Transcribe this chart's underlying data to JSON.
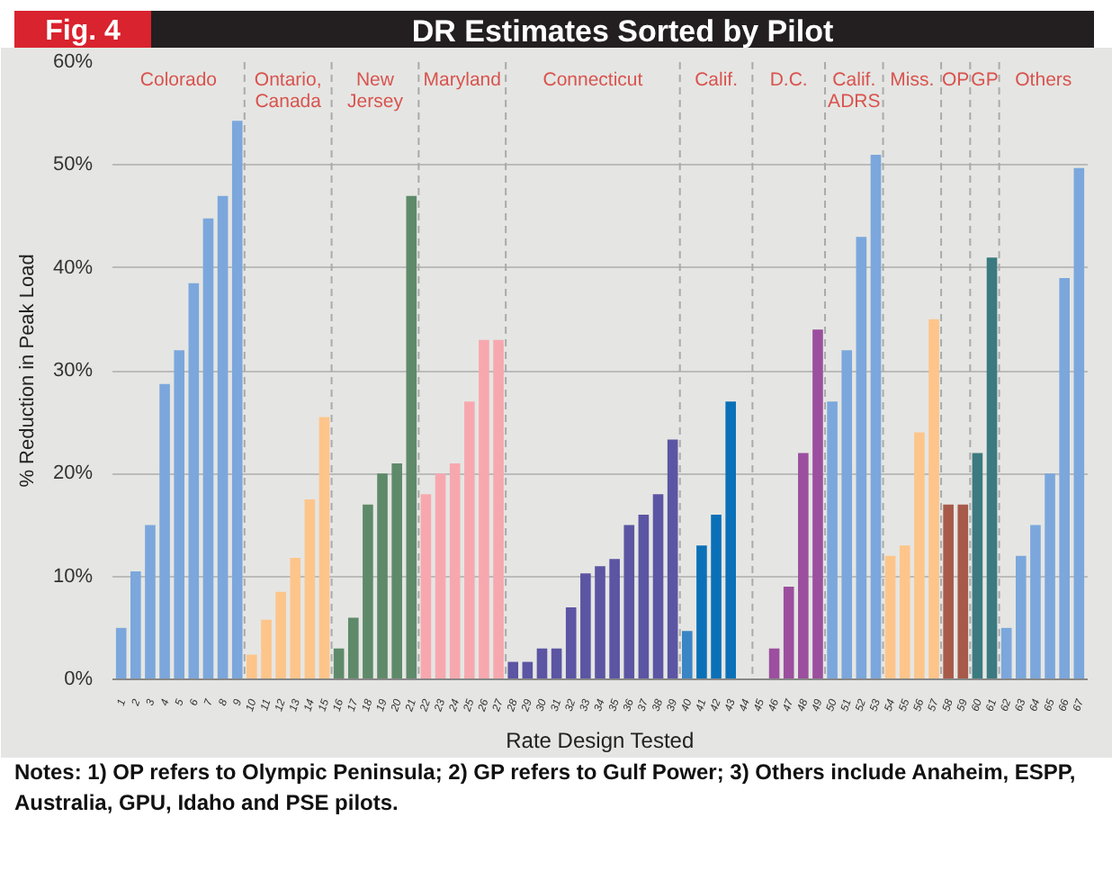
{
  "chart_data": {
    "type": "bar",
    "title": "DR Estimates Sorted by Pilot",
    "xlabel": "Rate Design Tested",
    "ylabel": "% Reduction in Peak Load",
    "x": [
      1,
      2,
      3,
      4,
      5,
      6,
      7,
      8,
      9,
      10,
      11,
      12,
      13,
      14,
      15,
      16,
      17,
      18,
      19,
      20,
      21,
      22,
      23,
      24,
      25,
      26,
      27,
      28,
      29,
      30,
      31,
      32,
      33,
      34,
      35,
      36,
      37,
      38,
      39,
      40,
      41,
      42,
      43,
      44,
      45,
      46,
      47,
      48,
      49,
      50,
      51,
      52,
      53,
      54,
      55,
      56,
      57,
      58,
      59,
      60,
      61,
      62,
      63,
      64,
      65,
      66,
      67
    ],
    "values": [
      5,
      10.5,
      15,
      28.7,
      32,
      38.5,
      44.8,
      47,
      54.3,
      2.4,
      5.8,
      8.5,
      11.8,
      17.5,
      25.5,
      3,
      6,
      17,
      20,
      21,
      47,
      18,
      20,
      21,
      27,
      33,
      33,
      1.7,
      1.7,
      3,
      3,
      7,
      10.3,
      11,
      11.7,
      15,
      16,
      18,
      23.3,
      4.7,
      13,
      16,
      27,
      null,
      null,
      3,
      9,
      22,
      34,
      27,
      32,
      43,
      51,
      12,
      13,
      24,
      35,
      17,
      17,
      22,
      41,
      5,
      12,
      15,
      20,
      39,
      49.7
    ],
    "colors": [
      "#7ba7dc",
      "#7ba7dc",
      "#7ba7dc",
      "#7ba7dc",
      "#7ba7dc",
      "#7ba7dc",
      "#7ba7dc",
      "#7ba7dc",
      "#7ba7dc",
      "#fdc58a",
      "#fdc58a",
      "#fdc58a",
      "#fdc58a",
      "#fdc58a",
      "#fdc58a",
      "#5e8a6a",
      "#5e8a6a",
      "#5e8a6a",
      "#5e8a6a",
      "#5e8a6a",
      "#5e8a6a",
      "#f7a8ae",
      "#f7a8ae",
      "#f7a8ae",
      "#f7a8ae",
      "#f7a8ae",
      "#f7a8ae",
      "#5b55a3",
      "#5b55a3",
      "#5b55a3",
      "#5b55a3",
      "#5b55a3",
      "#5b55a3",
      "#5b55a3",
      "#5b55a3",
      "#5b55a3",
      "#5b55a3",
      "#5b55a3",
      "#5b55a3",
      "#3a85c5",
      "#0a70b8",
      "#0a70b8",
      "#0a70b8",
      "#0a70b8",
      "#9b4f9e",
      "#9b4f9e",
      "#9b4f9e",
      "#9b4f9e",
      "#9b4f9e",
      "#7ba7dc",
      "#7ba7dc",
      "#7ba7dc",
      "#7ba7dc",
      "#fdc58a",
      "#fdc58a",
      "#fdc58a",
      "#fdc58a",
      "#a85a4a",
      "#a85a4a",
      "#3b7a80",
      "#3b7a80",
      "#7ba7dc",
      "#7ba7dc",
      "#7ba7dc",
      "#7ba7dc",
      "#7ba7dc",
      "#7ba7dc"
    ],
    "xlim": [
      0.4,
      67.6
    ],
    "xticks": [
      1,
      2,
      3,
      4,
      5,
      6,
      7,
      8,
      9,
      10,
      11,
      12,
      13,
      14,
      15,
      16,
      17,
      18,
      19,
      20,
      21,
      22,
      23,
      24,
      25,
      26,
      27,
      28,
      29,
      30,
      31,
      32,
      33,
      34,
      35,
      36,
      37,
      38,
      39,
      40,
      41,
      42,
      43,
      44,
      45,
      46,
      47,
      48,
      49,
      50,
      51,
      52,
      53,
      54,
      55,
      56,
      57,
      58,
      59,
      60,
      61,
      62,
      63,
      64,
      65,
      66,
      67
    ],
    "ylim": [
      0,
      60
    ],
    "yticks": [
      {
        "value": 0,
        "label": "0%"
      },
      {
        "value": 10,
        "label": "10%"
      },
      {
        "value": 20,
        "label": "20%"
      },
      {
        "value": 30,
        "label": "30%"
      },
      {
        "value": 40,
        "label": "40%"
      },
      {
        "value": 50,
        "label": "50%"
      },
      {
        "value": 60,
        "label": "60%"
      }
    ],
    "grid": "y",
    "ref_lines": [
      {
        "axis": "x",
        "value": 9.5,
        "line_style": "dashed",
        "color": "#aaaaaa"
      },
      {
        "axis": "x",
        "value": 15.5,
        "line_style": "dashed",
        "color": "#aaaaaa"
      },
      {
        "axis": "x",
        "value": 21.5,
        "line_style": "dashed",
        "color": "#aaaaaa"
      },
      {
        "axis": "x",
        "value": 27.5,
        "line_style": "dashed",
        "color": "#aaaaaa"
      },
      {
        "axis": "x",
        "value": 39.5,
        "line_style": "dashed",
        "color": "#aaaaaa"
      },
      {
        "axis": "x",
        "value": 44.5,
        "line_style": "dashed",
        "color": "#aaaaaa"
      },
      {
        "axis": "x",
        "value": 49.5,
        "line_style": "dashed",
        "color": "#aaaaaa"
      },
      {
        "axis": "x",
        "value": 53.5,
        "line_style": "dashed",
        "color": "#aaaaaa"
      },
      {
        "axis": "x",
        "value": 57.5,
        "line_style": "dashed",
        "color": "#aaaaaa"
      },
      {
        "axis": "x",
        "value": 59.5,
        "line_style": "dashed",
        "color": "#aaaaaa"
      },
      {
        "axis": "x",
        "value": 61.5,
        "line_style": "dashed",
        "color": "#aaaaaa"
      }
    ],
    "annotations": [
      "Colorado",
      "Ontario,\nCanada",
      "New\nJersey",
      "Maryland",
      "Connecticut",
      "Calif.",
      "D.C.",
      "Calif.\nADRS",
      "Miss.",
      "OP",
      "GP",
      "Others",
      "Fig. 4",
      "Notes: 1) OP refers to Olympic Peninsula; 2) GP refers to Gulf Power; 3) Others include Anaheim, ESPP, Australia, GPU, Idaho and PSE pilots."
    ]
  }
}
